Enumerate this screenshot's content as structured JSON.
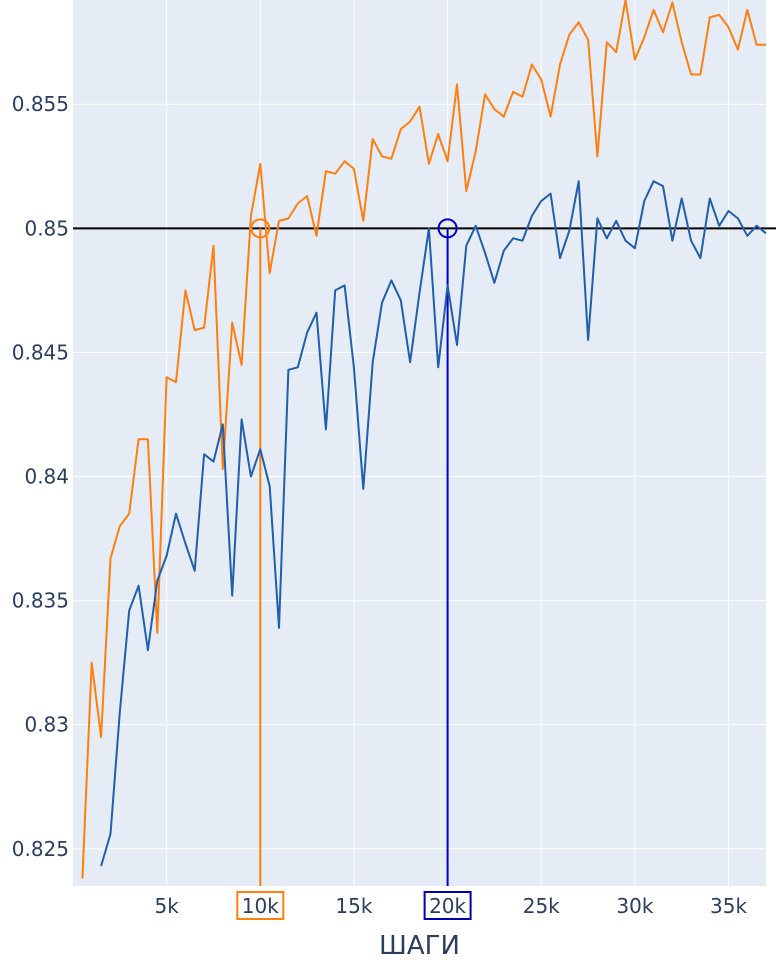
{
  "chart_data": {
    "type": "line",
    "title": "",
    "xlabel": "ШАГИ",
    "ylabel": "",
    "xlim": [
      0,
      37000
    ],
    "ylim": [
      0.8235,
      0.8592
    ],
    "grid": true,
    "legend": "none",
    "plot_bg": "#e5ecf6",
    "grid_color": "#ffffff",
    "text_color": "#2a3f5f",
    "x_ticks": [
      {
        "value": 5000,
        "label": "5k"
      },
      {
        "value": 10000,
        "label": "10k",
        "boxed_color": "#ff7f0e"
      },
      {
        "value": 15000,
        "label": "15k"
      },
      {
        "value": 20000,
        "label": "20k",
        "boxed_color": "#0000aa"
      },
      {
        "value": 25000,
        "label": "25k"
      },
      {
        "value": 30000,
        "label": "30k"
      },
      {
        "value": 35000,
        "label": "35k"
      }
    ],
    "y_ticks": [
      {
        "value": 0.825,
        "label": "0.825"
      },
      {
        "value": 0.83,
        "label": "0.83"
      },
      {
        "value": 0.835,
        "label": "0.835"
      },
      {
        "value": 0.84,
        "label": "0.84"
      },
      {
        "value": 0.845,
        "label": "0.845"
      },
      {
        "value": 0.85,
        "label": "0.85"
      },
      {
        "value": 0.855,
        "label": "0.855"
      }
    ],
    "reference_lines": {
      "horizontal": {
        "y": 0.85,
        "color": "#000000"
      },
      "vertical": [
        {
          "x": 10000,
          "color": "#ff7f0e",
          "series_index": 0
        },
        {
          "x": 20000,
          "color": "#0000cc",
          "series_index": 1
        }
      ]
    },
    "markers": [
      {
        "x": 10000,
        "y": 0.85,
        "color": "#ff7f0e"
      },
      {
        "x": 20000,
        "y": 0.85,
        "color": "#0000cc"
      }
    ],
    "series": [
      {
        "color": "#ff7f0e",
        "x": [
          500,
          1000,
          1500,
          2000,
          2500,
          3000,
          3500,
          4000,
          4500,
          5000,
          5500,
          6000,
          6500,
          7000,
          7500,
          8000,
          8500,
          9000,
          9500,
          10000,
          10500,
          11000,
          11500,
          12000,
          12500,
          13000,
          13500,
          14000,
          14500,
          15000,
          15500,
          16000,
          16500,
          17000,
          17500,
          18000,
          18500,
          19000,
          19500,
          20000,
          20500,
          21000,
          21500,
          22000,
          22500,
          23000,
          23500,
          24000,
          24500,
          25000,
          25500,
          26000,
          26500,
          27000,
          27500,
          28000,
          28500,
          29000,
          29500,
          30000,
          30500,
          31000,
          31500,
          32000,
          32500,
          33000,
          33500,
          34000,
          34500,
          35000,
          35500,
          36000,
          36500,
          37000
        ],
        "values": [
          0.8238,
          0.8325,
          0.8295,
          0.8367,
          0.838,
          0.8385,
          0.8415,
          0.8415,
          0.8337,
          0.844,
          0.8438,
          0.8475,
          0.8459,
          0.846,
          0.8493,
          0.8403,
          0.8462,
          0.8445,
          0.8505,
          0.8526,
          0.8482,
          0.8503,
          0.8504,
          0.851,
          0.8513,
          0.8497,
          0.8523,
          0.8522,
          0.8527,
          0.8524,
          0.8503,
          0.8536,
          0.8529,
          0.8528,
          0.854,
          0.8543,
          0.8549,
          0.8526,
          0.8538,
          0.8527,
          0.8558,
          0.8515,
          0.8531,
          0.8554,
          0.8548,
          0.8545,
          0.8555,
          0.8553,
          0.8566,
          0.856,
          0.8545,
          0.8566,
          0.8578,
          0.8583,
          0.8576,
          0.8529,
          0.8575,
          0.8571,
          0.8592,
          0.8568,
          0.8577,
          0.8588,
          0.8579,
          0.8591,
          0.8575,
          0.8562,
          0.8562,
          0.8585,
          0.8586,
          0.8581,
          0.8572,
          0.8588,
          0.8574,
          0.8574
        ]
      },
      {
        "color": "#1f5fad",
        "x": [
          1500,
          2000,
          2500,
          3000,
          3500,
          4000,
          4500,
          5000,
          5500,
          6000,
          6500,
          7000,
          7500,
          8000,
          8500,
          9000,
          9500,
          10000,
          10500,
          11000,
          11500,
          12000,
          12500,
          13000,
          13500,
          14000,
          14500,
          15000,
          15500,
          16000,
          16500,
          17000,
          17500,
          18000,
          18500,
          19000,
          19500,
          20000,
          20500,
          21000,
          21500,
          22000,
          22500,
          23000,
          23500,
          24000,
          24500,
          25000,
          25500,
          26000,
          26500,
          27000,
          27500,
          28000,
          28500,
          29000,
          29500,
          30000,
          30500,
          31000,
          31500,
          32000,
          32500,
          33000,
          33500,
          34000,
          34500,
          35000,
          35500,
          36000,
          36500,
          37000
        ],
        "values": [
          0.8243,
          0.8256,
          0.8305,
          0.8346,
          0.8356,
          0.833,
          0.8358,
          0.8368,
          0.8385,
          0.8373,
          0.8362,
          0.8409,
          0.8406,
          0.8421,
          0.8352,
          0.8423,
          0.84,
          0.8411,
          0.8396,
          0.8339,
          0.8443,
          0.8444,
          0.8458,
          0.8466,
          0.8419,
          0.8475,
          0.8477,
          0.8444,
          0.8395,
          0.8446,
          0.847,
          0.8479,
          0.8471,
          0.8446,
          0.8474,
          0.85,
          0.8444,
          0.8477,
          0.8453,
          0.8493,
          0.8501,
          0.849,
          0.8478,
          0.8491,
          0.8496,
          0.8495,
          0.8505,
          0.8511,
          0.8514,
          0.8488,
          0.8499,
          0.8519,
          0.8455,
          0.8504,
          0.8496,
          0.8503,
          0.8495,
          0.8492,
          0.8511,
          0.8519,
          0.8517,
          0.8495,
          0.8512,
          0.8495,
          0.8488,
          0.8512,
          0.8501,
          0.8507,
          0.8504,
          0.8497,
          0.8501,
          0.8498
        ]
      }
    ]
  }
}
